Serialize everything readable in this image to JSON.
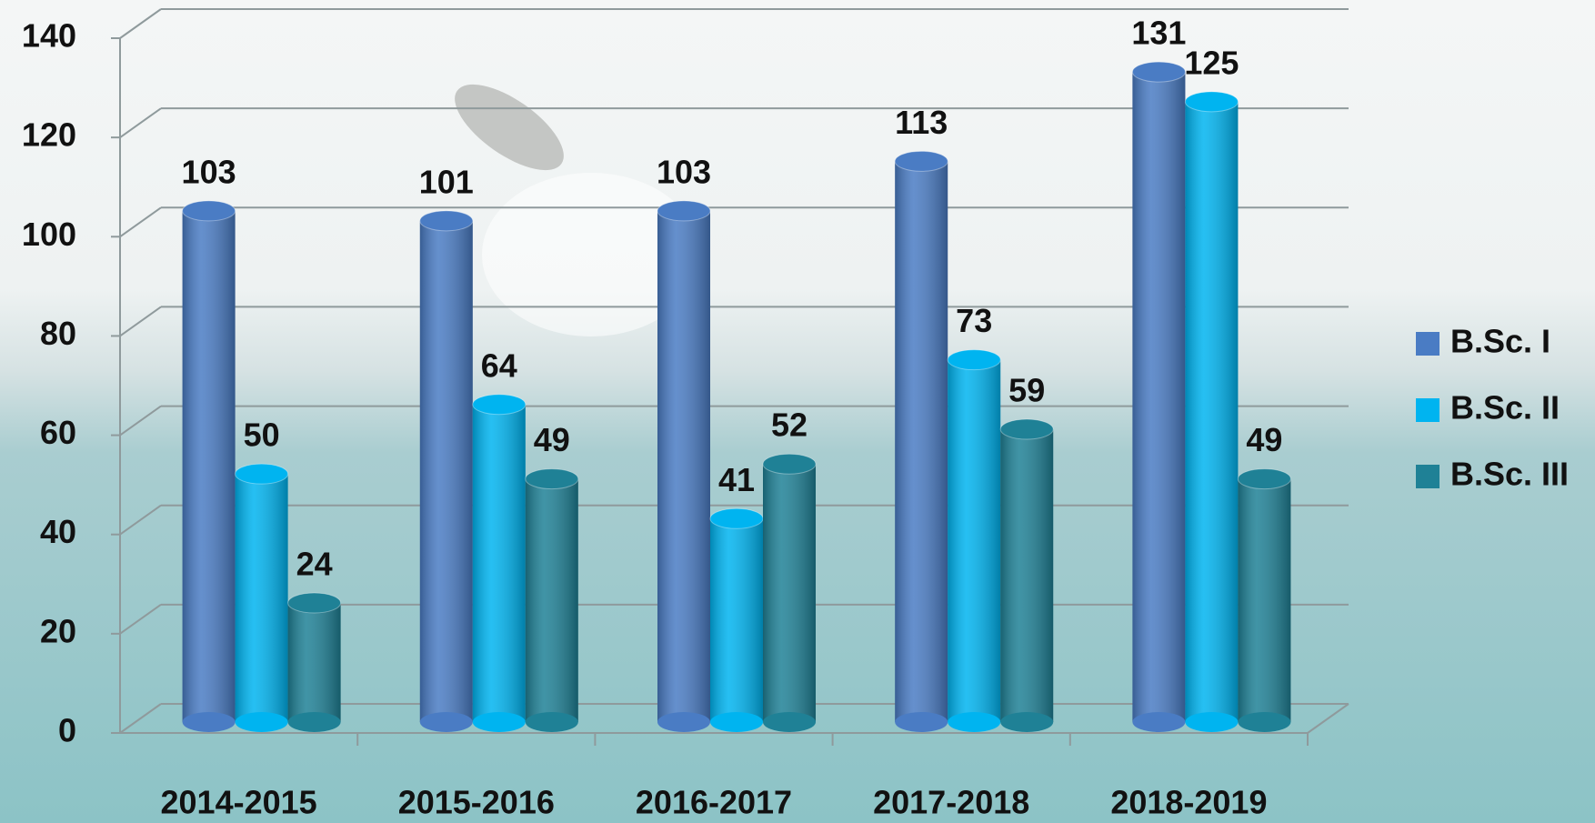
{
  "chart_data": {
    "type": "bar",
    "categories": [
      "2014-2015",
      "2015-2016",
      "2016-2017",
      "2017-2018",
      "2018-2019"
    ],
    "series": [
      {
        "name": "B.Sc. I",
        "color": "#4a7cc4",
        "values": [
          103,
          101,
          103,
          113,
          131
        ]
      },
      {
        "name": "B.Sc. II",
        "color": "#00b4f0",
        "values": [
          50,
          64,
          41,
          73,
          125
        ]
      },
      {
        "name": "B.Sc. III",
        "color": "#1f8196",
        "values": [
          24,
          49,
          52,
          59,
          49
        ]
      }
    ],
    "ylim": [
      0,
      140
    ],
    "yticks": [
      0,
      20,
      40,
      60,
      80,
      100,
      120,
      140
    ],
    "grid": true,
    "legend": "right"
  }
}
